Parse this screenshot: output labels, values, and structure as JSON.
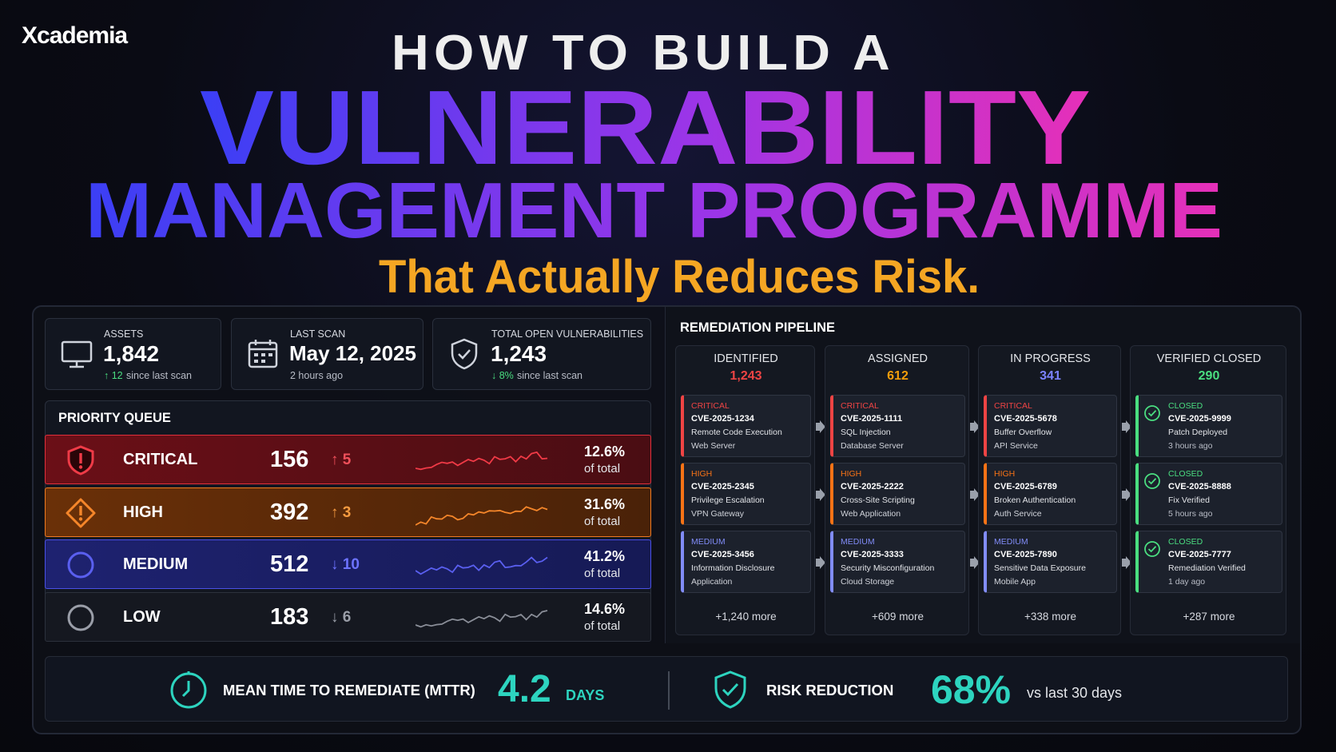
{
  "brand": "Xcademia",
  "header": {
    "line1": "HOW TO BUILD A",
    "line2": "VULNERABILITY",
    "line3": "MANAGEMENT PROGRAMME",
    "tagline": "That Actually Reduces Risk."
  },
  "stats": [
    {
      "label": "ASSETS",
      "value": "1,842",
      "change": "↑ 12",
      "note": "since last scan"
    },
    {
      "label": "LAST SCAN",
      "value": "May 12, 2025",
      "note": "2 hours ago"
    },
    {
      "label": "TOTAL OPEN VULNERABILITIES",
      "value": "1,243",
      "change": "↓ 8%",
      "note": "since last scan"
    }
  ],
  "priority_queue": {
    "title": "PRIORITY QUEUE",
    "rows": [
      {
        "level": "CRITICAL",
        "count": "156",
        "change": "↑ 5",
        "pct": "12.6%",
        "pct_note": "of total"
      },
      {
        "level": "HIGH",
        "count": "392",
        "change": "↑ 3",
        "pct": "31.6%",
        "pct_note": "of total"
      },
      {
        "level": "MEDIUM",
        "count": "512",
        "change": "↓ 10",
        "pct": "41.2%",
        "pct_note": "of total"
      },
      {
        "level": "LOW",
        "count": "183",
        "change": "↓ 6",
        "pct": "14.6%",
        "pct_note": "of total"
      }
    ]
  },
  "pipeline": {
    "title": "REMEDIATION PIPELINE",
    "columns": [
      {
        "name": "IDENTIFIED",
        "count": "1,243",
        "cards": [
          {
            "tag": "CRITICAL",
            "id": "CVE-2025-1234",
            "title": "Remote Code Execution",
            "detail": "Web Server"
          },
          {
            "tag": "HIGH",
            "id": "CVE-2025-2345",
            "title": "Privilege Escalation",
            "detail": "VPN Gateway"
          },
          {
            "tag": "MEDIUM",
            "id": "CVE-2025-3456",
            "title": "Information Disclosure",
            "detail": "Application"
          }
        ],
        "more": "+1,240 more"
      },
      {
        "name": "ASSIGNED",
        "count": "612",
        "cards": [
          {
            "tag": "CRITICAL",
            "id": "CVE-2025-1111",
            "title": "SQL Injection",
            "detail": "Database Server"
          },
          {
            "tag": "HIGH",
            "id": "CVE-2025-2222",
            "title": "Cross-Site Scripting",
            "detail": "Web Application"
          },
          {
            "tag": "MEDIUM",
            "id": "CVE-2025-3333",
            "title": "Security Misconfiguration",
            "detail": "Cloud Storage"
          }
        ],
        "more": "+609 more"
      },
      {
        "name": "IN PROGRESS",
        "count": "341",
        "cards": [
          {
            "tag": "CRITICAL",
            "id": "CVE-2025-5678",
            "title": "Buffer Overflow",
            "detail": "API Service"
          },
          {
            "tag": "HIGH",
            "id": "CVE-2025-6789",
            "title": "Broken Authentication",
            "detail": "Auth Service"
          },
          {
            "tag": "MEDIUM",
            "id": "CVE-2025-7890",
            "title": "Sensitive Data Exposure",
            "detail": "Mobile App"
          }
        ],
        "more": "+338 more"
      },
      {
        "name": "VERIFIED CLOSED",
        "count": "290",
        "cards": [
          {
            "tag": "CLOSED",
            "id": "CVE-2025-9999",
            "title": "Patch Deployed",
            "detail": "3 hours ago"
          },
          {
            "tag": "CLOSED",
            "id": "CVE-2025-8888",
            "title": "Fix Verified",
            "detail": "5 hours ago"
          },
          {
            "tag": "CLOSED",
            "id": "CVE-2025-7777",
            "title": "Remediation Verified",
            "detail": "1 day ago"
          }
        ],
        "more": "+287 more"
      }
    ]
  },
  "footer": {
    "mttr_label": "MEAN TIME TO REMEDIATE (MTTR)",
    "mttr_value": "4.2",
    "mttr_unit": "DAYS",
    "risk_label": "RISK REDUCTION",
    "risk_value": "68%",
    "risk_note": "vs last 30 days"
  }
}
